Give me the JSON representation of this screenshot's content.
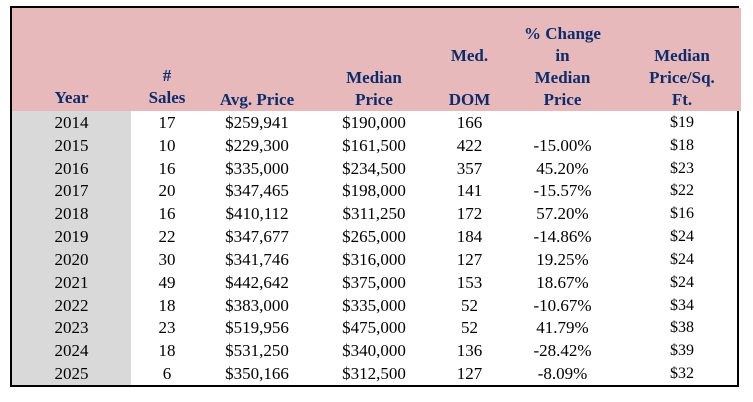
{
  "table": {
    "headers": {
      "year": "Year",
      "sales": "#\nSales",
      "avg_price": "Avg. Price",
      "median_price": "Median\nPrice",
      "med_dom": "Med.\n\nDOM",
      "pct_change": "% Change\nin\nMedian\nPrice",
      "median_ppsf": "Median\nPrice/Sq.\nFt."
    },
    "rows": [
      {
        "year": "2014",
        "sales": "17",
        "avg_price": "$259,941",
        "median_price": "$190,000",
        "dom": "166",
        "pct_change": "",
        "ppsf": "$19"
      },
      {
        "year": "2015",
        "sales": "10",
        "avg_price": "$229,300",
        "median_price": "$161,500",
        "dom": "422",
        "pct_change": "-15.00%",
        "ppsf": "$18"
      },
      {
        "year": "2016",
        "sales": "16",
        "avg_price": "$335,000",
        "median_price": "$234,500",
        "dom": "357",
        "pct_change": "45.20%",
        "ppsf": "$23"
      },
      {
        "year": "2017",
        "sales": "20",
        "avg_price": "$347,465",
        "median_price": "$198,000",
        "dom": "141",
        "pct_change": "-15.57%",
        "ppsf": "$22"
      },
      {
        "year": "2018",
        "sales": "16",
        "avg_price": "$410,112",
        "median_price": "$311,250",
        "dom": "172",
        "pct_change": "57.20%",
        "ppsf": "$16"
      },
      {
        "year": "2019",
        "sales": "22",
        "avg_price": "$347,677",
        "median_price": "$265,000",
        "dom": "184",
        "pct_change": "-14.86%",
        "ppsf": "$24"
      },
      {
        "year": "2020",
        "sales": "30",
        "avg_price": "$341,746",
        "median_price": "$316,000",
        "dom": "127",
        "pct_change": "19.25%",
        "ppsf": "$24"
      },
      {
        "year": "2021",
        "sales": "49",
        "avg_price": "$442,642",
        "median_price": "$375,000",
        "dom": "153",
        "pct_change": "18.67%",
        "ppsf": "$24"
      },
      {
        "year": "2022",
        "sales": "18",
        "avg_price": "$383,000",
        "median_price": "$335,000",
        "dom": "52",
        "pct_change": "-10.67%",
        "ppsf": "$34"
      },
      {
        "year": "2023",
        "sales": "23",
        "avg_price": "$519,956",
        "median_price": "$475,000",
        "dom": "52",
        "pct_change": "41.79%",
        "ppsf": "$38"
      },
      {
        "year": "2024",
        "sales": "18",
        "avg_price": "$531,250",
        "median_price": "$340,000",
        "dom": "136",
        "pct_change": "-28.42%",
        "ppsf": "$39"
      },
      {
        "year": "2025",
        "sales": "6",
        "avg_price": "$350,166",
        "median_price": "$312,500",
        "dom": "127",
        "pct_change": "-8.09%",
        "ppsf": "$32"
      }
    ]
  },
  "colors": {
    "header_bg": "#e8b9bb",
    "header_text": "#0c2c6b",
    "year_col_bg": "#d9d9d9",
    "border": "#000000"
  }
}
